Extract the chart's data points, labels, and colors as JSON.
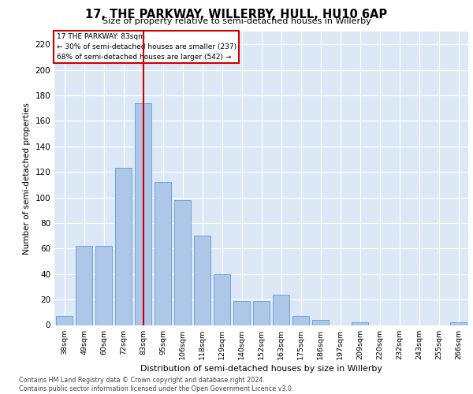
{
  "title_line1": "17, THE PARKWAY, WILLERBY, HULL, HU10 6AP",
  "title_line2": "Size of property relative to semi-detached houses in Willerby",
  "xlabel": "Distribution of semi-detached houses by size in Willerby",
  "ylabel": "Number of semi-detached properties",
  "categories": [
    "38sqm",
    "49sqm",
    "60sqm",
    "72sqm",
    "83sqm",
    "95sqm",
    "106sqm",
    "118sqm",
    "129sqm",
    "140sqm",
    "152sqm",
    "163sqm",
    "175sqm",
    "186sqm",
    "197sqm",
    "209sqm",
    "220sqm",
    "232sqm",
    "243sqm",
    "255sqm",
    "266sqm"
  ],
  "values": [
    7,
    62,
    62,
    123,
    174,
    112,
    98,
    70,
    40,
    19,
    19,
    24,
    7,
    4,
    0,
    2,
    0,
    0,
    0,
    0,
    2
  ],
  "bar_color": "#aec6e8",
  "bar_edge_color": "#5a9fd4",
  "highlight_index": 4,
  "highlight_line_color": "#cc0000",
  "annotation_title": "17 THE PARKWAY: 83sqm",
  "annotation_line1": "← 30% of semi-detached houses are smaller (237)",
  "annotation_line2": "68% of semi-detached houses are larger (542) →",
  "annotation_box_edge_color": "#cc0000",
  "ylim": [
    0,
    230
  ],
  "yticks": [
    0,
    20,
    40,
    60,
    80,
    100,
    120,
    140,
    160,
    180,
    200,
    220
  ],
  "background_color": "#dce8f5",
  "footer_line1": "Contains HM Land Registry data © Crown copyright and database right 2024.",
  "footer_line2": "Contains public sector information licensed under the Open Government Licence v3.0."
}
